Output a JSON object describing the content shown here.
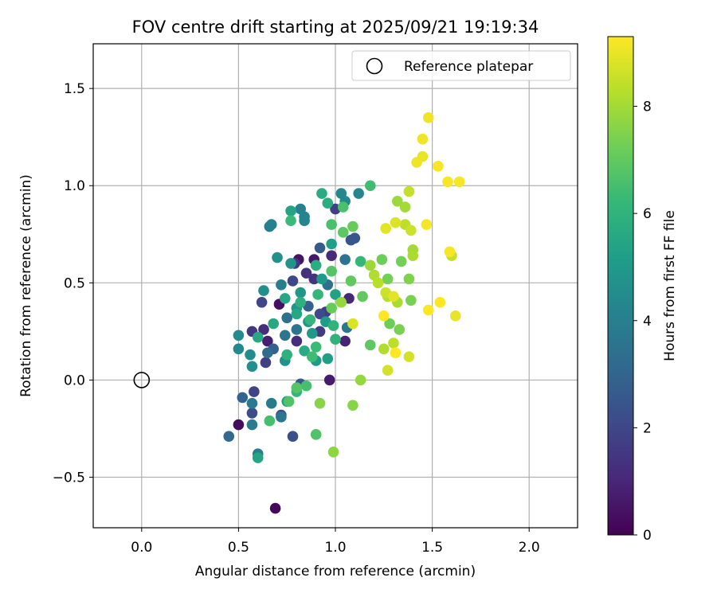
{
  "chart_data": {
    "type": "scatter",
    "title": "FOV centre drift starting at 2025/09/21 19:19:34",
    "xlabel": "Angular distance from reference (arcmin)",
    "ylabel": "Rotation from reference (arcmin)",
    "xlim": [
      -0.25,
      2.25
    ],
    "ylim": [
      -0.76,
      1.73
    ],
    "x_ticks": [
      0.0,
      0.5,
      1.0,
      1.5,
      2.0
    ],
    "x_tick_labels": [
      "0.0",
      "0.5",
      "1.0",
      "1.5",
      "2.0"
    ],
    "y_ticks": [
      -0.5,
      0.0,
      0.5,
      1.0,
      1.5
    ],
    "y_tick_labels": [
      "−0.5",
      "0.0",
      "0.5",
      "1.0",
      "1.5"
    ],
    "grid": true,
    "legend": {
      "placement": "top-right",
      "entries": [
        "Reference platepar"
      ]
    },
    "reference_point": {
      "x": 0.0,
      "y": 0.0,
      "label": "Reference platepar"
    },
    "colorbar": {
      "label": "Hours from first FF file",
      "range": [
        0,
        9.3
      ],
      "ticks": [
        0,
        2,
        4,
        6,
        8
      ],
      "tick_labels": [
        "0",
        "2",
        "4",
        "6",
        "8"
      ],
      "colormap": [
        "#440154",
        "#482878",
        "#3e4989",
        "#31688e",
        "#26828e",
        "#1f9e89",
        "#35b779",
        "#6ece58",
        "#b5de2b",
        "#fde725"
      ]
    },
    "points": [
      {
        "x": 0.69,
        "y": -0.66,
        "t": 0.2
      },
      {
        "x": 0.5,
        "y": -0.23,
        "t": 0.3
      },
      {
        "x": 0.71,
        "y": 0.39,
        "t": 0.4
      },
      {
        "x": 0.81,
        "y": 0.62,
        "t": 0.5
      },
      {
        "x": 0.89,
        "y": 0.62,
        "t": 0.6
      },
      {
        "x": 0.97,
        "y": 0.0,
        "t": 0.7
      },
      {
        "x": 0.65,
        "y": 0.2,
        "t": 0.8
      },
      {
        "x": 1.05,
        "y": 0.2,
        "t": 0.9
      },
      {
        "x": 1.07,
        "y": 0.42,
        "t": 1.0
      },
      {
        "x": 0.98,
        "y": 0.64,
        "t": 1.1
      },
      {
        "x": 0.63,
        "y": 0.26,
        "t": 1.2
      },
      {
        "x": 0.8,
        "y": 0.2,
        "t": 1.2
      },
      {
        "x": 0.85,
        "y": 0.55,
        "t": 1.3
      },
      {
        "x": 0.89,
        "y": 0.52,
        "t": 1.4
      },
      {
        "x": 0.57,
        "y": 0.25,
        "t": 1.5
      },
      {
        "x": 0.79,
        "y": 0.6,
        "t": 1.5
      },
      {
        "x": 0.92,
        "y": 0.25,
        "t": 1.6
      },
      {
        "x": 0.95,
        "y": 0.35,
        "t": 1.7
      },
      {
        "x": 1.0,
        "y": 0.88,
        "t": 1.8
      },
      {
        "x": 0.64,
        "y": 0.09,
        "t": 1.8
      },
      {
        "x": 0.58,
        "y": -0.06,
        "t": 1.9
      },
      {
        "x": 0.62,
        "y": 0.4,
        "t": 2.0
      },
      {
        "x": 0.78,
        "y": 0.51,
        "t": 2.0
      },
      {
        "x": 0.92,
        "y": 0.34,
        "t": 2.1
      },
      {
        "x": 0.57,
        "y": -0.17,
        "t": 2.2
      },
      {
        "x": 0.78,
        "y": -0.29,
        "t": 2.3
      },
      {
        "x": 0.72,
        "y": -0.18,
        "t": 2.3
      },
      {
        "x": 1.08,
        "y": 0.72,
        "t": 2.4
      },
      {
        "x": 1.1,
        "y": 0.73,
        "t": 2.5
      },
      {
        "x": 0.82,
        "y": -0.02,
        "t": 2.6
      },
      {
        "x": 0.92,
        "y": 0.68,
        "t": 2.7
      },
      {
        "x": 0.68,
        "y": 0.16,
        "t": 2.8
      },
      {
        "x": 0.86,
        "y": 0.38,
        "t": 2.9
      },
      {
        "x": 0.52,
        "y": -0.09,
        "t": 3.0
      },
      {
        "x": 0.45,
        "y": -0.29,
        "t": 3.2
      },
      {
        "x": 0.65,
        "y": 0.14,
        "t": 3.3
      },
      {
        "x": 0.96,
        "y": 0.49,
        "t": 3.4
      },
      {
        "x": 0.75,
        "y": 0.32,
        "t": 3.4
      },
      {
        "x": 1.05,
        "y": 0.62,
        "t": 3.5
      },
      {
        "x": 0.8,
        "y": 0.26,
        "t": 3.6
      },
      {
        "x": 0.74,
        "y": 0.23,
        "t": 3.6
      },
      {
        "x": 1.06,
        "y": 0.27,
        "t": 3.7
      },
      {
        "x": 0.72,
        "y": -0.19,
        "t": 3.7
      },
      {
        "x": 0.57,
        "y": -0.12,
        "t": 3.8
      },
      {
        "x": 0.67,
        "y": -0.12,
        "t": 3.8
      },
      {
        "x": 0.57,
        "y": -0.23,
        "t": 3.9
      },
      {
        "x": 0.6,
        "y": -0.38,
        "t": 3.9
      },
      {
        "x": 0.72,
        "y": 0.49,
        "t": 4.0
      },
      {
        "x": 0.66,
        "y": 0.79,
        "t": 4.0
      },
      {
        "x": 0.67,
        "y": 0.8,
        "t": 4.1
      },
      {
        "x": 0.82,
        "y": 0.88,
        "t": 4.1
      },
      {
        "x": 0.84,
        "y": 0.84,
        "t": 4.2
      },
      {
        "x": 0.84,
        "y": 0.82,
        "t": 4.2
      },
      {
        "x": 1.03,
        "y": 0.96,
        "t": 4.3
      },
      {
        "x": 1.12,
        "y": 0.96,
        "t": 4.3
      },
      {
        "x": 1.05,
        "y": 0.92,
        "t": 4.4
      },
      {
        "x": 0.5,
        "y": 0.16,
        "t": 4.4
      },
      {
        "x": 0.5,
        "y": 0.23,
        "t": 4.5
      },
      {
        "x": 0.56,
        "y": 0.13,
        "t": 4.5
      },
      {
        "x": 0.57,
        "y": 0.07,
        "t": 4.6
      },
      {
        "x": 0.63,
        "y": 0.46,
        "t": 4.6
      },
      {
        "x": 0.7,
        "y": 0.63,
        "t": 4.7
      },
      {
        "x": 0.74,
        "y": 0.1,
        "t": 4.7
      },
      {
        "x": 0.77,
        "y": 0.6,
        "t": 4.8
      },
      {
        "x": 0.8,
        "y": 0.37,
        "t": 4.8
      },
      {
        "x": 0.82,
        "y": 0.45,
        "t": 4.9
      },
      {
        "x": 0.86,
        "y": 0.3,
        "t": 4.9
      },
      {
        "x": 0.88,
        "y": 0.24,
        "t": 5.0
      },
      {
        "x": 0.9,
        "y": 0.1,
        "t": 5.0
      },
      {
        "x": 0.93,
        "y": 0.52,
        "t": 5.1
      },
      {
        "x": 0.95,
        "y": 0.3,
        "t": 5.1
      },
      {
        "x": 0.96,
        "y": 0.11,
        "t": 5.2
      },
      {
        "x": 0.98,
        "y": 0.7,
        "t": 5.2
      },
      {
        "x": 1.0,
        "y": 0.44,
        "t": 5.3
      },
      {
        "x": 0.75,
        "y": -0.11,
        "t": 5.3
      },
      {
        "x": 0.6,
        "y": -0.4,
        "t": 5.4
      },
      {
        "x": 0.77,
        "y": 0.87,
        "t": 5.4
      },
      {
        "x": 0.8,
        "y": 0.34,
        "t": 5.5
      },
      {
        "x": 0.74,
        "y": 0.42,
        "t": 5.5
      },
      {
        "x": 0.68,
        "y": 0.29,
        "t": 5.6
      },
      {
        "x": 0.6,
        "y": 0.22,
        "t": 5.6
      },
      {
        "x": 0.84,
        "y": 0.15,
        "t": 5.7
      },
      {
        "x": 0.93,
        "y": 0.96,
        "t": 5.7
      },
      {
        "x": 0.96,
        "y": 0.91,
        "t": 5.8
      },
      {
        "x": 0.9,
        "y": 0.59,
        "t": 5.8
      },
      {
        "x": 0.75,
        "y": 0.13,
        "t": 5.9
      },
      {
        "x": 0.82,
        "y": 0.4,
        "t": 5.9
      },
      {
        "x": 0.99,
        "y": 0.28,
        "t": 6.0
      },
      {
        "x": 1.0,
        "y": 0.21,
        "t": 6.0
      },
      {
        "x": 0.8,
        "y": -0.06,
        "t": 6.1
      },
      {
        "x": 0.87,
        "y": 0.31,
        "t": 6.1
      },
      {
        "x": 0.91,
        "y": 0.44,
        "t": 6.2
      },
      {
        "x": 1.13,
        "y": 0.61,
        "t": 6.2
      },
      {
        "x": 0.9,
        "y": 0.17,
        "t": 6.3
      },
      {
        "x": 0.77,
        "y": 0.82,
        "t": 6.3
      },
      {
        "x": 1.18,
        "y": 1.0,
        "t": 6.4
      },
      {
        "x": 0.88,
        "y": 0.12,
        "t": 6.4
      },
      {
        "x": 0.66,
        "y": -0.21,
        "t": 6.5
      },
      {
        "x": 0.85,
        "y": -0.03,
        "t": 6.5
      },
      {
        "x": 1.04,
        "y": 0.89,
        "t": 6.6
      },
      {
        "x": 0.98,
        "y": 0.8,
        "t": 6.6
      },
      {
        "x": 0.9,
        "y": -0.28,
        "t": 6.7
      },
      {
        "x": 0.76,
        "y": -0.11,
        "t": 6.7
      },
      {
        "x": 0.8,
        "y": -0.04,
        "t": 6.8
      },
      {
        "x": 0.98,
        "y": 0.56,
        "t": 6.8
      },
      {
        "x": 1.04,
        "y": 0.76,
        "t": 6.9
      },
      {
        "x": 1.18,
        "y": 0.18,
        "t": 6.9
      },
      {
        "x": 1.14,
        "y": 0.43,
        "t": 7.0
      },
      {
        "x": 1.08,
        "y": 0.51,
        "t": 7.0
      },
      {
        "x": 1.09,
        "y": 0.79,
        "t": 7.1
      },
      {
        "x": 0.98,
        "y": 0.37,
        "t": 7.1
      },
      {
        "x": 1.24,
        "y": 0.62,
        "t": 7.2
      },
      {
        "x": 1.28,
        "y": 0.29,
        "t": 7.2
      },
      {
        "x": 1.34,
        "y": 0.61,
        "t": 7.3
      },
      {
        "x": 1.27,
        "y": 0.52,
        "t": 7.3
      },
      {
        "x": 1.33,
        "y": 0.26,
        "t": 7.4
      },
      {
        "x": 1.39,
        "y": 0.41,
        "t": 7.4
      },
      {
        "x": 1.38,
        "y": 0.52,
        "t": 7.5
      },
      {
        "x": 0.92,
        "y": -0.12,
        "t": 7.6
      },
      {
        "x": 1.09,
        "y": -0.13,
        "t": 7.6
      },
      {
        "x": 0.99,
        "y": -0.37,
        "t": 7.7
      },
      {
        "x": 1.13,
        "y": 0.0,
        "t": 7.8
      },
      {
        "x": 1.03,
        "y": 0.4,
        "t": 7.8
      },
      {
        "x": 1.18,
        "y": 0.59,
        "t": 7.9
      },
      {
        "x": 1.32,
        "y": 0.92,
        "t": 7.9
      },
      {
        "x": 1.36,
        "y": 0.89,
        "t": 8.0
      },
      {
        "x": 1.4,
        "y": 0.67,
        "t": 8.0
      },
      {
        "x": 1.4,
        "y": 0.64,
        "t": 8.1
      },
      {
        "x": 1.32,
        "y": 0.4,
        "t": 8.1
      },
      {
        "x": 1.25,
        "y": 0.16,
        "t": 8.2
      },
      {
        "x": 1.2,
        "y": 0.54,
        "t": 8.2
      },
      {
        "x": 1.22,
        "y": 0.5,
        "t": 8.3
      },
      {
        "x": 1.27,
        "y": 0.43,
        "t": 8.3
      },
      {
        "x": 1.3,
        "y": 0.19,
        "t": 8.4
      },
      {
        "x": 1.36,
        "y": 0.8,
        "t": 8.4
      },
      {
        "x": 1.6,
        "y": 0.64,
        "t": 8.5
      },
      {
        "x": 1.38,
        "y": 0.97,
        "t": 8.5
      },
      {
        "x": 1.39,
        "y": 0.77,
        "t": 8.6
      },
      {
        "x": 1.26,
        "y": 0.45,
        "t": 8.6
      },
      {
        "x": 1.38,
        "y": 0.12,
        "t": 8.7
      },
      {
        "x": 1.27,
        "y": 0.05,
        "t": 8.7
      },
      {
        "x": 1.09,
        "y": 0.29,
        "t": 8.8
      },
      {
        "x": 1.31,
        "y": 0.81,
        "t": 8.8
      },
      {
        "x": 1.26,
        "y": 0.78,
        "t": 8.9
      },
      {
        "x": 1.3,
        "y": 0.43,
        "t": 8.9
      },
      {
        "x": 1.62,
        "y": 0.33,
        "t": 9.0
      },
      {
        "x": 1.45,
        "y": 1.15,
        "t": 9.0
      },
      {
        "x": 1.42,
        "y": 1.12,
        "t": 9.1
      },
      {
        "x": 1.48,
        "y": 1.35,
        "t": 9.1
      },
      {
        "x": 1.45,
        "y": 1.24,
        "t": 9.1
      },
      {
        "x": 1.53,
        "y": 1.1,
        "t": 9.2
      },
      {
        "x": 1.58,
        "y": 1.02,
        "t": 9.2
      },
      {
        "x": 1.64,
        "y": 1.02,
        "t": 9.2
      },
      {
        "x": 1.59,
        "y": 0.66,
        "t": 9.2
      },
      {
        "x": 1.47,
        "y": 0.8,
        "t": 9.2
      },
      {
        "x": 1.54,
        "y": 0.4,
        "t": 9.3
      },
      {
        "x": 1.48,
        "y": 0.36,
        "t": 9.3
      },
      {
        "x": 1.31,
        "y": 0.14,
        "t": 9.3
      },
      {
        "x": 1.25,
        "y": 0.33,
        "t": 9.3
      }
    ]
  }
}
